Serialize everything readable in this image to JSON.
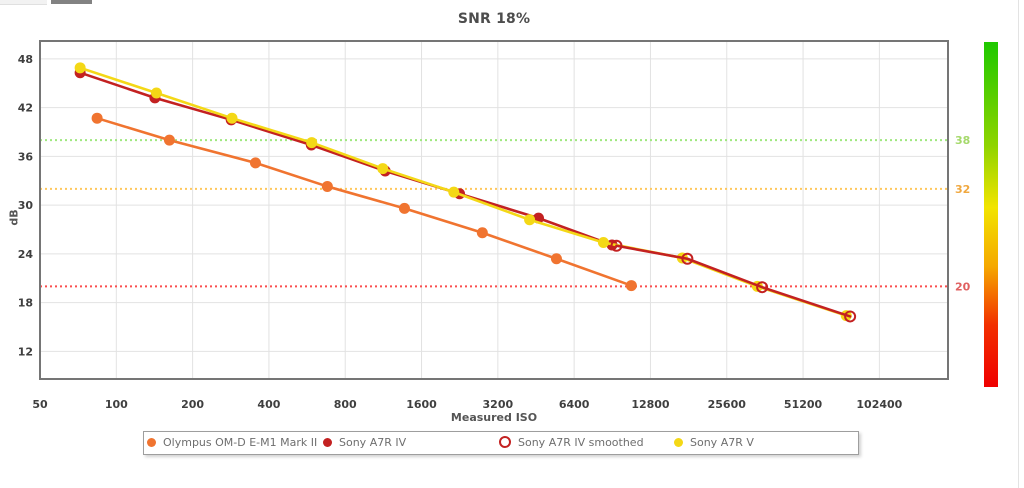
{
  "title": "SNR 18%",
  "chart_data": {
    "type": "line",
    "title": "SNR 18%",
    "xlabel": "Measured ISO",
    "ylabel": "dB",
    "x_scale": "log",
    "x_ticks": [
      50,
      100,
      200,
      400,
      800,
      1600,
      3200,
      6400,
      12800,
      25600,
      51200,
      102400
    ],
    "y_ticks": [
      12,
      18,
      24,
      30,
      36,
      42,
      48
    ],
    "xlim": [
      50,
      191000
    ],
    "ylim": [
      8.6,
      50.2
    ],
    "grid": true,
    "legend_position": "bottom",
    "reference_lines": [
      {
        "value": 38,
        "label": "38",
        "line_color": "#9fe87e",
        "label_color": "#a5d96b"
      },
      {
        "value": 32,
        "label": "32",
        "line_color": "#ffc85c",
        "label_color": "#f0a840"
      },
      {
        "value": 20,
        "label": "20",
        "line_color": "#fb4e4e",
        "label_color": "#e06060"
      }
    ],
    "series": [
      {
        "name": "Olympus OM-D E-M1 Mark II",
        "color": "#f07430",
        "marker": "filled",
        "x": [
          84,
          162,
          354,
          680,
          1370,
          2780,
          5450,
          10760
        ],
        "y": [
          40.7,
          38.0,
          35.2,
          32.3,
          29.6,
          26.6,
          23.4,
          20.1
        ]
      },
      {
        "name": "Sony A7R IV",
        "color": "#c32121",
        "marker": "filled",
        "x": [
          72,
          142,
          284,
          588,
          1150,
          2260,
          4630,
          9030
        ],
        "y": [
          46.3,
          43.2,
          40.5,
          37.4,
          34.2,
          31.4,
          28.4,
          25.1
        ]
      },
      {
        "name": "Sony A7R IV smoothed",
        "color": "#c32121",
        "marker": "open",
        "x": [
          9400,
          17900,
          35300,
          78500
        ],
        "y": [
          25.0,
          23.4,
          19.9,
          16.3
        ]
      },
      {
        "name": "Sony A7R V",
        "color": "#f4d816",
        "marker": "filled",
        "x": [
          72,
          144,
          286,
          590,
          1125,
          2145,
          4270,
          8350,
          17100,
          33800,
          75800
        ],
        "y": [
          46.9,
          43.8,
          40.7,
          37.7,
          34.5,
          31.6,
          28.2,
          25.4,
          23.5,
          20.0,
          16.4
        ]
      }
    ],
    "gradient_bar": {
      "stops": [
        "#1ec800 0%",
        "#8fd400 30%",
        "#f2e400 48%",
        "#f5a800 65%",
        "#f23000 82%",
        "#ef0000 100%"
      ]
    }
  },
  "ui": {
    "grid_color": "#e2e2e2",
    "border_color": "#757575",
    "tick_color": "#3f3f3f",
    "legend_text_color": "#6e6e6e"
  }
}
